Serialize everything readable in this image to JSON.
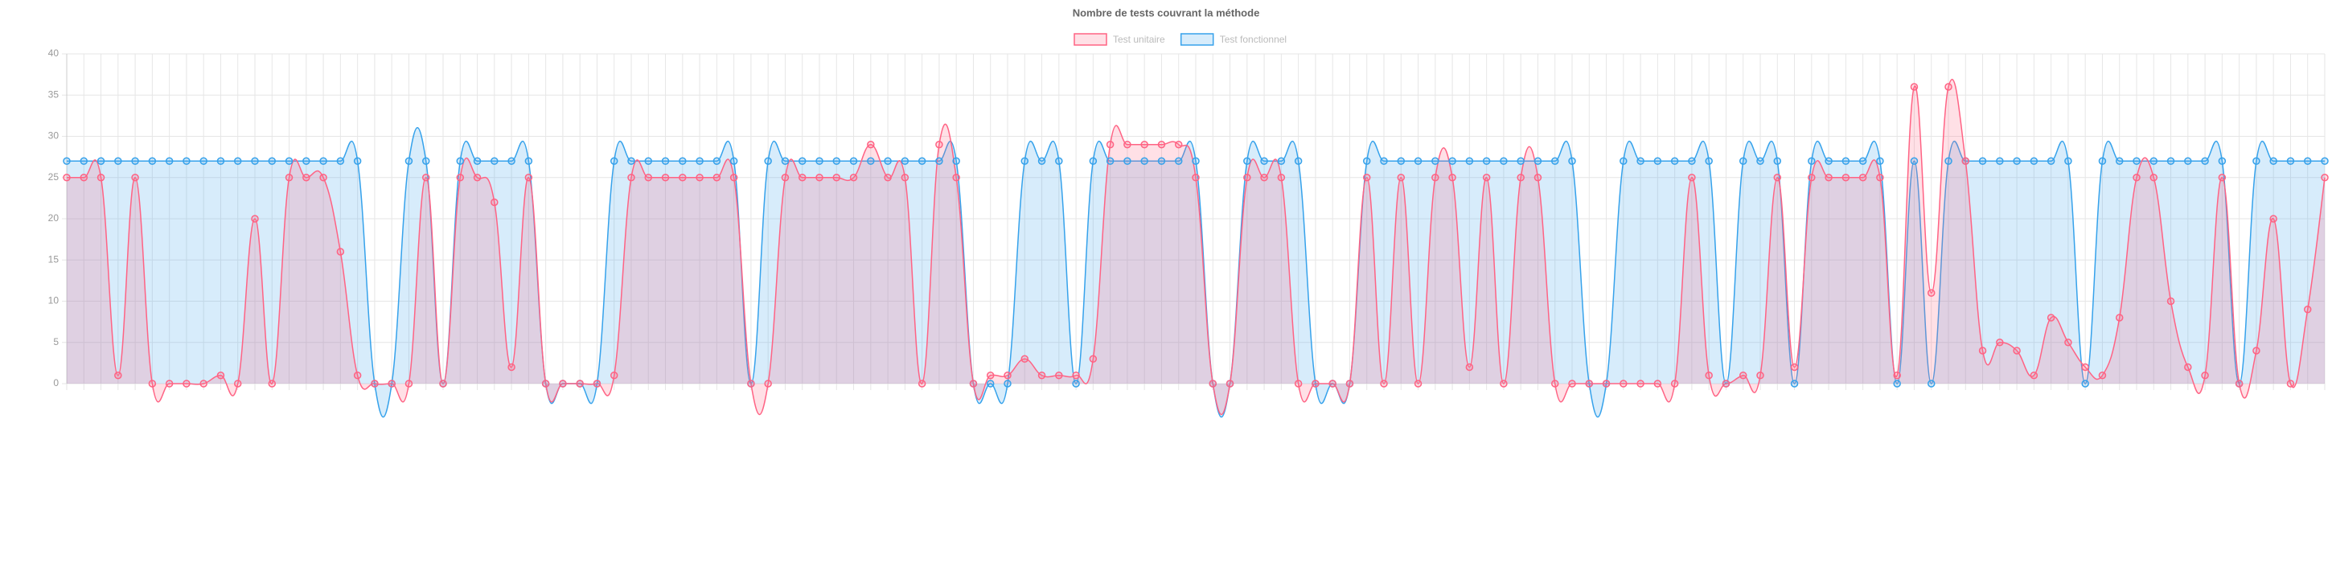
{
  "chart_data": {
    "type": "line",
    "title": "Nombre de tests couvrant la méthode",
    "categories": [
      null,
      null,
      null,
      null,
      null,
      null,
      null,
      null,
      null,
      null,
      null,
      null,
      null,
      null,
      null,
      null,
      null,
      null,
      null,
      null,
      null,
      null,
      null,
      null,
      null,
      null,
      null,
      null,
      null,
      null,
      null,
      null,
      null,
      null,
      null,
      null,
      null,
      null,
      null,
      null,
      null,
      null,
      null,
      null,
      null,
      null,
      null,
      null,
      null,
      null,
      null,
      null,
      null,
      null,
      null,
      null,
      null,
      null,
      null,
      null,
      null,
      null,
      null,
      null,
      null,
      null,
      null,
      null,
      null,
      null,
      null,
      null,
      null,
      null,
      null,
      null,
      null,
      null,
      null,
      null,
      null,
      null,
      null,
      null,
      null,
      null,
      null,
      null,
      null,
      null,
      null,
      null,
      null,
      null,
      null,
      null,
      null,
      null,
      null,
      null,
      null,
      null,
      null,
      null,
      null,
      null,
      null,
      null,
      null,
      null,
      null,
      null,
      null,
      null,
      null,
      null,
      null,
      null,
      null,
      null,
      null,
      null,
      null,
      null,
      null,
      null,
      null,
      null,
      null,
      null,
      null,
      null,
      null
    ],
    "series": [
      {
        "name": "Test unitaire",
        "color": "#ff6384",
        "fill": "rgba(255,99,132,0.2)",
        "values": [
          25,
          25,
          25,
          1,
          25,
          0,
          0,
          0,
          0,
          1,
          0,
          20,
          0,
          25,
          25,
          25,
          16,
          1,
          0,
          0,
          0,
          25,
          0,
          25,
          25,
          22,
          2,
          25,
          0,
          0,
          0,
          0,
          1,
          25,
          25,
          25,
          25,
          25,
          25,
          25,
          0,
          0,
          25,
          25,
          25,
          25,
          25,
          29,
          25,
          25,
          0,
          29,
          25,
          0,
          1,
          1,
          3,
          1,
          1,
          1,
          3,
          29,
          29,
          29,
          29,
          29,
          25,
          0,
          0,
          25,
          25,
          25,
          0,
          0,
          0,
          0,
          25,
          0,
          25,
          0,
          25,
          25,
          2,
          25,
          0,
          25,
          25,
          0,
          0,
          0,
          0,
          0,
          0,
          0,
          0,
          25,
          1,
          0,
          1,
          1,
          25,
          2,
          25,
          25,
          25,
          25,
          25,
          1,
          36,
          11,
          36,
          27,
          4,
          5,
          4,
          1,
          8,
          5,
          2,
          1,
          8,
          25,
          25,
          10,
          2,
          1,
          25,
          0,
          4,
          20,
          0,
          9,
          25
        ]
      },
      {
        "name": "Test fonctionnel",
        "color": "#36a2eb",
        "fill": "rgba(54,162,235,0.2)",
        "values": [
          27,
          27,
          27,
          27,
          27,
          27,
          27,
          27,
          27,
          27,
          27,
          27,
          27,
          27,
          27,
          27,
          27,
          27,
          0,
          0,
          27,
          27,
          0,
          27,
          27,
          27,
          27,
          27,
          0,
          0,
          0,
          0,
          27,
          27,
          27,
          27,
          27,
          27,
          27,
          27,
          0,
          27,
          27,
          27,
          27,
          27,
          27,
          27,
          27,
          27,
          27,
          27,
          27,
          0,
          0,
          0,
          27,
          27,
          27,
          0,
          27,
          27,
          27,
          27,
          27,
          27,
          27,
          0,
          0,
          27,
          27,
          27,
          27,
          0,
          0,
          0,
          27,
          27,
          27,
          27,
          27,
          27,
          27,
          27,
          27,
          27,
          27,
          27,
          27,
          0,
          0,
          27,
          27,
          27,
          27,
          27,
          27,
          0,
          27,
          27,
          27,
          0,
          27,
          27,
          27,
          27,
          27,
          0,
          27,
          0,
          27,
          27,
          27,
          27,
          27,
          27,
          27,
          27,
          0,
          27,
          27,
          27,
          27,
          27,
          27,
          27,
          27,
          0,
          27,
          27,
          27,
          27,
          27
        ]
      }
    ],
    "ylim": [
      0,
      40
    ],
    "yticks": [
      0,
      5,
      10,
      15,
      20,
      25,
      30,
      35,
      40
    ],
    "grid": true,
    "legend": "top"
  }
}
